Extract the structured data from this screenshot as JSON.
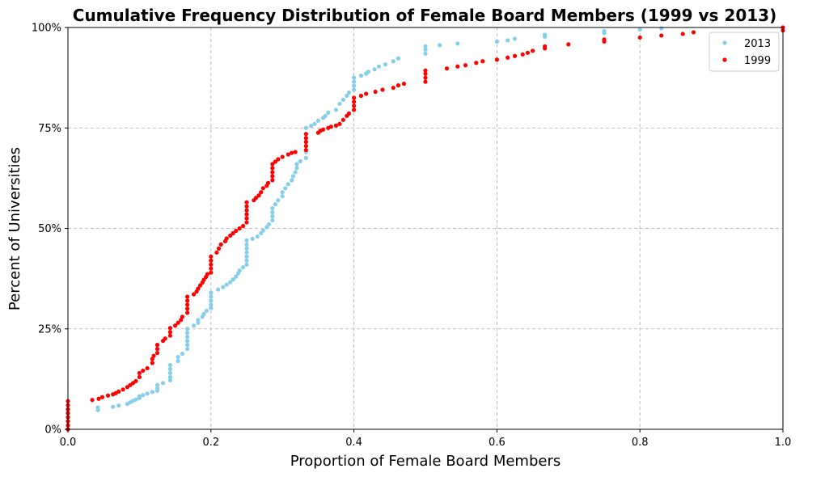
{
  "chart_data": {
    "type": "scatter",
    "title": "Cumulative Frequency Distribution of Female Board Members (1999 vs 2013)",
    "xlabel": "Proportion of Female Board Members",
    "ylabel": "Percent of Universities",
    "xlim": [
      0,
      1
    ],
    "ylim": [
      0,
      100
    ],
    "x_ticks": [
      "0.0",
      "0.2",
      "0.4",
      "0.6",
      "0.8",
      "1.0"
    ],
    "x_tick_values": [
      0,
      0.2,
      0.4,
      0.6,
      0.8,
      1.0
    ],
    "y_ticks": [
      "0%",
      "25%",
      "50%",
      "75%",
      "100%"
    ],
    "y_tick_values": [
      0,
      25,
      50,
      75,
      100
    ],
    "grid": true,
    "legend_position": "top-right",
    "series": [
      {
        "name": "2013",
        "color": "#87ceeb",
        "points": [
          [
            0.0,
            0.0
          ],
          [
            0.0,
            2.0
          ],
          [
            0.0,
            4.5
          ],
          [
            0.042,
            4.8
          ],
          [
            0.042,
            5.4
          ],
          [
            0.063,
            5.6
          ],
          [
            0.071,
            5.9
          ],
          [
            0.083,
            6.3
          ],
          [
            0.087,
            6.7
          ],
          [
            0.091,
            7.1
          ],
          [
            0.095,
            7.4
          ],
          [
            0.1,
            7.8
          ],
          [
            0.1,
            8.2
          ],
          [
            0.105,
            8.5
          ],
          [
            0.111,
            8.9
          ],
          [
            0.118,
            9.3
          ],
          [
            0.125,
            9.6
          ],
          [
            0.125,
            10.2
          ],
          [
            0.125,
            11.0
          ],
          [
            0.133,
            11.5
          ],
          [
            0.143,
            12.2
          ],
          [
            0.143,
            13.0
          ],
          [
            0.143,
            14.0
          ],
          [
            0.143,
            15.0
          ],
          [
            0.143,
            16.0
          ],
          [
            0.154,
            17.0
          ],
          [
            0.154,
            18.0
          ],
          [
            0.16,
            18.8
          ],
          [
            0.167,
            20.0
          ],
          [
            0.167,
            21.0
          ],
          [
            0.167,
            22.0
          ],
          [
            0.167,
            23.0
          ],
          [
            0.167,
            24.0
          ],
          [
            0.167,
            25.0
          ],
          [
            0.176,
            25.8
          ],
          [
            0.182,
            26.5
          ],
          [
            0.182,
            27.2
          ],
          [
            0.188,
            28.0
          ],
          [
            0.19,
            28.7
          ],
          [
            0.194,
            29.5
          ],
          [
            0.2,
            30.2
          ],
          [
            0.2,
            31.0
          ],
          [
            0.2,
            32.0
          ],
          [
            0.2,
            33.0
          ],
          [
            0.2,
            34.0
          ],
          [
            0.21,
            34.8
          ],
          [
            0.217,
            35.4
          ],
          [
            0.222,
            36.0
          ],
          [
            0.227,
            36.6
          ],
          [
            0.231,
            37.3
          ],
          [
            0.235,
            38.0
          ],
          [
            0.238,
            38.8
          ],
          [
            0.24,
            39.5
          ],
          [
            0.245,
            40.3
          ],
          [
            0.25,
            41.0
          ],
          [
            0.25,
            42.0
          ],
          [
            0.25,
            43.0
          ],
          [
            0.25,
            44.0
          ],
          [
            0.25,
            45.0
          ],
          [
            0.25,
            46.0
          ],
          [
            0.25,
            47.0
          ],
          [
            0.258,
            47.4
          ],
          [
            0.265,
            48.0
          ],
          [
            0.27,
            48.8
          ],
          [
            0.273,
            49.5
          ],
          [
            0.278,
            50.3
          ],
          [
            0.281,
            51.0
          ],
          [
            0.286,
            52.0
          ],
          [
            0.286,
            53.0
          ],
          [
            0.286,
            54.0
          ],
          [
            0.286,
            55.0
          ],
          [
            0.29,
            56.0
          ],
          [
            0.294,
            57.0
          ],
          [
            0.3,
            58.0
          ],
          [
            0.3,
            59.0
          ],
          [
            0.304,
            60.0
          ],
          [
            0.308,
            61.0
          ],
          [
            0.313,
            62.0
          ],
          [
            0.315,
            63.0
          ],
          [
            0.318,
            64.0
          ],
          [
            0.32,
            65.0
          ],
          [
            0.32,
            66.0
          ],
          [
            0.325,
            66.7
          ],
          [
            0.333,
            67.5
          ],
          [
            0.333,
            69.0
          ],
          [
            0.333,
            70.5
          ],
          [
            0.333,
            72.0
          ],
          [
            0.333,
            73.5
          ],
          [
            0.333,
            75.0
          ],
          [
            0.34,
            75.5
          ],
          [
            0.345,
            76.0
          ],
          [
            0.35,
            76.8
          ],
          [
            0.357,
            77.5
          ],
          [
            0.36,
            78.0
          ],
          [
            0.364,
            78.8
          ],
          [
            0.375,
            79.5
          ],
          [
            0.38,
            81.0
          ],
          [
            0.385,
            82.0
          ],
          [
            0.39,
            83.0
          ],
          [
            0.393,
            83.8
          ],
          [
            0.4,
            84.5
          ],
          [
            0.4,
            85.5
          ],
          [
            0.4,
            86.5
          ],
          [
            0.4,
            87.5
          ],
          [
            0.41,
            88.0
          ],
          [
            0.417,
            88.5
          ],
          [
            0.42,
            89.0
          ],
          [
            0.429,
            89.6
          ],
          [
            0.435,
            90.3
          ],
          [
            0.444,
            90.8
          ],
          [
            0.455,
            91.6
          ],
          [
            0.462,
            92.3
          ],
          [
            0.5,
            93.5
          ],
          [
            0.5,
            94.5
          ],
          [
            0.5,
            95.3
          ],
          [
            0.52,
            95.6
          ],
          [
            0.545,
            96.0
          ],
          [
            0.6,
            96.5
          ],
          [
            0.615,
            96.8
          ],
          [
            0.625,
            97.2
          ],
          [
            0.667,
            97.7
          ],
          [
            0.667,
            98.2
          ],
          [
            0.75,
            98.6
          ],
          [
            0.75,
            99.1
          ],
          [
            0.8,
            99.5
          ],
          [
            0.83,
            99.8
          ],
          [
            1.0,
            100.0
          ]
        ]
      },
      {
        "name": "1999",
        "color": "#ff0000",
        "points": [
          [
            0.0,
            0.0
          ],
          [
            0.0,
            1.0
          ],
          [
            0.0,
            2.0
          ],
          [
            0.0,
            3.0
          ],
          [
            0.0,
            4.0
          ],
          [
            0.0,
            5.0
          ],
          [
            0.0,
            6.0
          ],
          [
            0.0,
            7.0
          ],
          [
            0.034,
            7.3
          ],
          [
            0.043,
            7.6
          ],
          [
            0.048,
            8.0
          ],
          [
            0.056,
            8.4
          ],
          [
            0.063,
            8.7
          ],
          [
            0.067,
            9.0
          ],
          [
            0.071,
            9.4
          ],
          [
            0.077,
            9.9
          ],
          [
            0.083,
            10.5
          ],
          [
            0.087,
            11.0
          ],
          [
            0.091,
            11.5
          ],
          [
            0.095,
            12.0
          ],
          [
            0.1,
            13.0
          ],
          [
            0.1,
            14.0
          ],
          [
            0.105,
            14.6
          ],
          [
            0.111,
            15.2
          ],
          [
            0.118,
            16.5
          ],
          [
            0.118,
            17.5
          ],
          [
            0.12,
            18.3
          ],
          [
            0.125,
            19.0
          ],
          [
            0.125,
            20.0
          ],
          [
            0.125,
            21.0
          ],
          [
            0.133,
            22.0
          ],
          [
            0.136,
            22.6
          ],
          [
            0.143,
            23.3
          ],
          [
            0.143,
            24.2
          ],
          [
            0.143,
            25.2
          ],
          [
            0.15,
            25.8
          ],
          [
            0.154,
            26.5
          ],
          [
            0.158,
            27.2
          ],
          [
            0.16,
            28.0
          ],
          [
            0.167,
            29.0
          ],
          [
            0.167,
            30.0
          ],
          [
            0.167,
            31.0
          ],
          [
            0.167,
            32.0
          ],
          [
            0.167,
            33.0
          ],
          [
            0.176,
            33.6
          ],
          [
            0.18,
            34.3
          ],
          [
            0.182,
            35.0
          ],
          [
            0.185,
            35.8
          ],
          [
            0.188,
            36.5
          ],
          [
            0.19,
            37.2
          ],
          [
            0.193,
            37.9
          ],
          [
            0.195,
            38.6
          ],
          [
            0.2,
            39.0
          ],
          [
            0.2,
            40.0
          ],
          [
            0.2,
            41.0
          ],
          [
            0.2,
            42.0
          ],
          [
            0.2,
            43.0
          ],
          [
            0.208,
            44.0
          ],
          [
            0.211,
            45.0
          ],
          [
            0.214,
            46.0
          ],
          [
            0.22,
            46.8
          ],
          [
            0.222,
            47.5
          ],
          [
            0.227,
            48.2
          ],
          [
            0.231,
            48.8
          ],
          [
            0.235,
            49.4
          ],
          [
            0.24,
            50.0
          ],
          [
            0.245,
            50.6
          ],
          [
            0.25,
            51.5
          ],
          [
            0.25,
            52.5
          ],
          [
            0.25,
            53.5
          ],
          [
            0.25,
            54.5
          ],
          [
            0.25,
            55.5
          ],
          [
            0.25,
            56.5
          ],
          [
            0.26,
            57.0
          ],
          [
            0.263,
            57.6
          ],
          [
            0.267,
            58.2
          ],
          [
            0.27,
            59.0
          ],
          [
            0.273,
            60.0
          ],
          [
            0.278,
            60.6
          ],
          [
            0.28,
            61.3
          ],
          [
            0.286,
            62.0
          ],
          [
            0.286,
            63.0
          ],
          [
            0.286,
            64.0
          ],
          [
            0.286,
            65.0
          ],
          [
            0.286,
            66.0
          ],
          [
            0.29,
            66.6
          ],
          [
            0.294,
            67.2
          ],
          [
            0.3,
            67.8
          ],
          [
            0.308,
            68.4
          ],
          [
            0.313,
            68.8
          ],
          [
            0.318,
            69.0
          ],
          [
            0.333,
            69.5
          ],
          [
            0.333,
            70.5
          ],
          [
            0.333,
            71.5
          ],
          [
            0.333,
            72.5
          ],
          [
            0.333,
            73.5
          ],
          [
            0.35,
            73.8
          ],
          [
            0.353,
            74.3
          ],
          [
            0.357,
            74.6
          ],
          [
            0.364,
            75.0
          ],
          [
            0.368,
            75.3
          ],
          [
            0.375,
            75.6
          ],
          [
            0.38,
            76.0
          ],
          [
            0.385,
            77.0
          ],
          [
            0.39,
            78.0
          ],
          [
            0.393,
            78.6
          ],
          [
            0.4,
            79.5
          ],
          [
            0.4,
            80.5
          ],
          [
            0.4,
            81.5
          ],
          [
            0.4,
            82.5
          ],
          [
            0.41,
            83.0
          ],
          [
            0.417,
            83.5
          ],
          [
            0.43,
            84.0
          ],
          [
            0.44,
            84.5
          ],
          [
            0.455,
            85.0
          ],
          [
            0.462,
            85.6
          ],
          [
            0.47,
            86.0
          ],
          [
            0.5,
            86.5
          ],
          [
            0.5,
            87.5
          ],
          [
            0.5,
            88.5
          ],
          [
            0.5,
            89.3
          ],
          [
            0.53,
            89.8
          ],
          [
            0.545,
            90.3
          ],
          [
            0.556,
            90.6
          ],
          [
            0.571,
            91.2
          ],
          [
            0.58,
            91.6
          ],
          [
            0.6,
            92.0
          ],
          [
            0.615,
            92.5
          ],
          [
            0.625,
            92.9
          ],
          [
            0.636,
            93.3
          ],
          [
            0.643,
            93.7
          ],
          [
            0.65,
            94.2
          ],
          [
            0.667,
            94.8
          ],
          [
            0.667,
            95.3
          ],
          [
            0.7,
            95.8
          ],
          [
            0.75,
            96.5
          ],
          [
            0.75,
            97.0
          ],
          [
            0.8,
            97.5
          ],
          [
            0.83,
            98.0
          ],
          [
            0.86,
            98.4
          ],
          [
            0.875,
            98.8
          ],
          [
            1.0,
            99.3
          ],
          [
            1.0,
            100.0
          ]
        ]
      }
    ]
  }
}
